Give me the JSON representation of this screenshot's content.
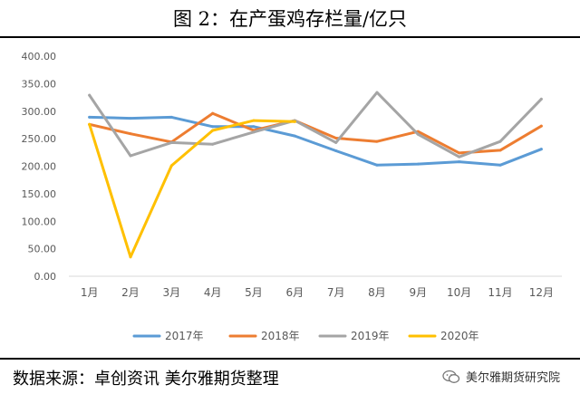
{
  "chart_data": {
    "type": "line",
    "title": "图 2：在产蛋鸡存栏量/亿只",
    "categories": [
      "1月",
      "2月",
      "3月",
      "4月",
      "5月",
      "6月",
      "7月",
      "8月",
      "9月",
      "10月",
      "11月",
      "12月"
    ],
    "ylim": [
      0,
      400
    ],
    "yticks": [
      "0.00",
      "50.00",
      "100.00",
      "150.00",
      "200.00",
      "250.00",
      "300.00",
      "350.00",
      "400.00"
    ],
    "grid": false,
    "legend_position": "bottom",
    "series": [
      {
        "name": "2017年",
        "color": "#5b9bd5",
        "values": [
          289,
          287,
          289,
          272,
          272,
          255,
          228,
          202,
          204,
          208,
          202,
          231
        ]
      },
      {
        "name": "2018年",
        "color": "#ed7d31",
        "values": [
          276,
          259,
          244,
          296,
          265,
          283,
          251,
          245,
          263,
          224,
          229,
          273
        ]
      },
      {
        "name": "2019年",
        "color": "#a5a5a5",
        "values": [
          329,
          219,
          243,
          240,
          262,
          283,
          243,
          334,
          258,
          217,
          245,
          322
        ]
      },
      {
        "name": "2020年",
        "color": "#ffc000",
        "values": [
          276,
          35,
          201,
          265,
          283,
          281,
          null,
          null,
          null,
          null,
          null,
          null
        ]
      }
    ]
  },
  "footer": {
    "source": "数据来源：卓创资讯  美尔雅期货整理",
    "brand": "美尔雅期货研究院",
    "brand_icon": "wechat-icon"
  }
}
